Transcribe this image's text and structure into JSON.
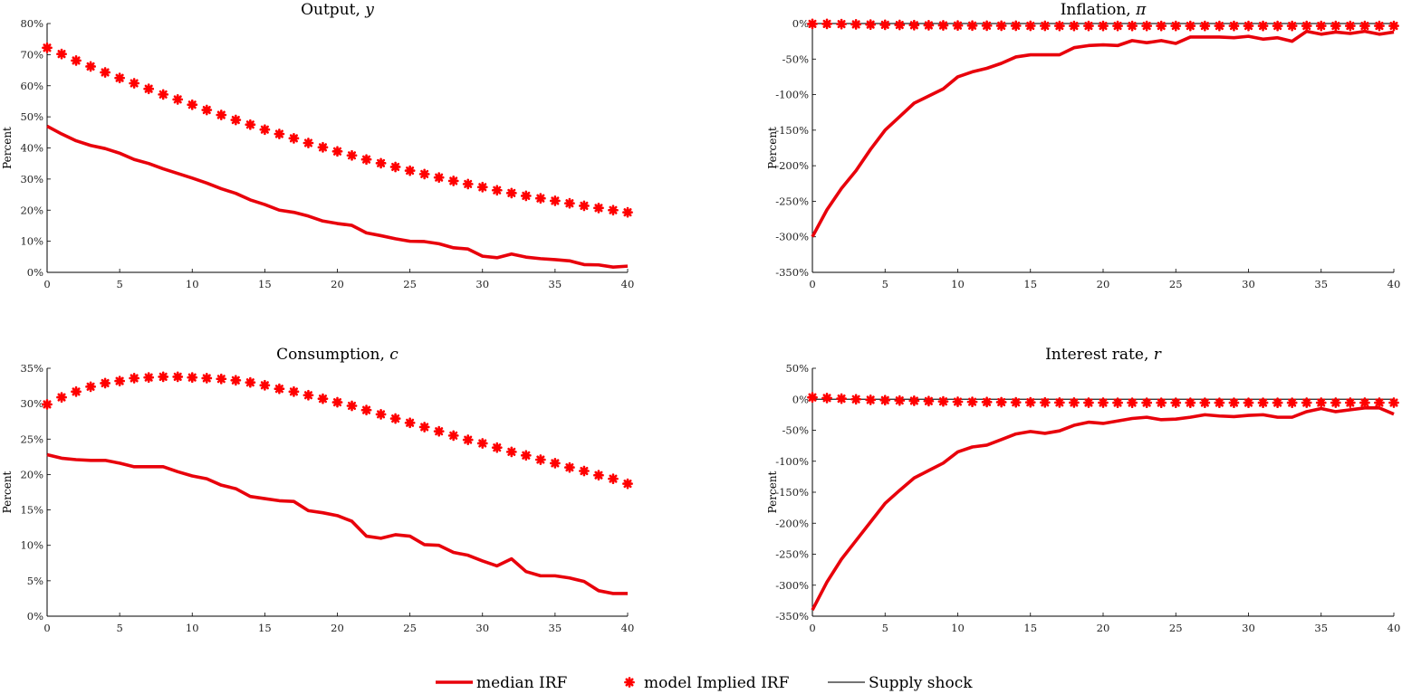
{
  "colors": {
    "median": "#e8000b",
    "model": "#ff0000",
    "supply": "#222222"
  },
  "legend": {
    "median_label": "median IRF",
    "model_label": "model Implied IRF",
    "supply_label": "Supply shock"
  },
  "chart_data": [
    {
      "type": "line",
      "title": "Output, ",
      "title_var": "y",
      "ylabel": "Percent",
      "xlim": [
        0,
        40
      ],
      "ylim": [
        0,
        80
      ],
      "xticks": [
        0,
        5,
        10,
        15,
        20,
        25,
        30,
        35,
        40
      ],
      "yticks": [
        0,
        10,
        20,
        30,
        40,
        50,
        60,
        70,
        80
      ],
      "y_tick_suffix": "%",
      "zero_line": false,
      "grid": false,
      "x": [
        0,
        1,
        2,
        3,
        4,
        5,
        6,
        7,
        8,
        9,
        10,
        11,
        12,
        13,
        14,
        15,
        16,
        17,
        18,
        19,
        20,
        21,
        22,
        23,
        24,
        25,
        26,
        27,
        28,
        29,
        30,
        31,
        32,
        33,
        34,
        35,
        36,
        37,
        38,
        39,
        40
      ],
      "series": [
        {
          "name": "median IRF",
          "style": "line",
          "values": [
            47,
            44.5,
            42.3,
            40.8,
            39.8,
            38.3,
            36.3,
            35,
            33.3,
            31.8,
            30.3,
            28.7,
            26.9,
            25.4,
            23.3,
            21.8,
            20,
            19.3,
            18.1,
            16.5,
            15.7,
            15.1,
            12.7,
            11.8,
            10.8,
            10,
            9.9,
            9.2,
            7.9,
            7.5,
            5.2,
            4.7,
            5.9,
            4.9,
            4.4,
            4.1,
            3.7,
            2.5,
            2.4,
            1.7,
            2
          ]
        },
        {
          "name": "model Implied IRF",
          "style": "markers",
          "values": [
            72.2,
            70.2,
            68.1,
            66.2,
            64.3,
            62.5,
            60.8,
            59.0,
            57.2,
            55.6,
            53.9,
            52.2,
            50.6,
            49.0,
            47.5,
            45.9,
            44.5,
            43.1,
            41.6,
            40.2,
            38.9,
            37.6,
            36.3,
            35.1,
            33.9,
            32.7,
            31.6,
            30.5,
            29.4,
            28.4,
            27.4,
            26.4,
            25.5,
            24.6,
            23.8,
            23.0,
            22.2,
            21.4,
            20.7,
            20.0,
            19.3
          ]
        }
      ]
    },
    {
      "type": "line",
      "title": "Inflation, ",
      "title_var": "π",
      "ylabel": "Percent",
      "xlim": [
        0,
        40
      ],
      "ylim": [
        -350,
        0
      ],
      "xticks": [
        0,
        5,
        10,
        15,
        20,
        25,
        30,
        35,
        40
      ],
      "yticks": [
        -350,
        -300,
        -250,
        -200,
        -150,
        -100,
        -50,
        0
      ],
      "y_tick_suffix": "%",
      "zero_line": true,
      "grid": false,
      "x": [
        0,
        1,
        2,
        3,
        4,
        5,
        6,
        7,
        8,
        9,
        10,
        11,
        12,
        13,
        14,
        15,
        16,
        17,
        18,
        19,
        20,
        21,
        22,
        23,
        24,
        25,
        26,
        27,
        28,
        29,
        30,
        31,
        32,
        33,
        34,
        35,
        36,
        37,
        38,
        39,
        40
      ],
      "series": [
        {
          "name": "median IRF",
          "style": "line",
          "values": [
            -300,
            -262,
            -232,
            -207,
            -177,
            -150,
            -131,
            -112,
            -102,
            -92,
            -75,
            -68,
            -63,
            -56,
            -47,
            -44,
            -44,
            -44,
            -34,
            -31,
            -30,
            -31,
            -24,
            -27,
            -24,
            -28,
            -19,
            -19,
            -19,
            -20,
            -18,
            -22,
            -20,
            -25,
            -11,
            -15,
            -12,
            -14,
            -11,
            -15,
            -12
          ]
        },
        {
          "name": "model Implied IRF",
          "style": "markers",
          "values": [
            -0.5,
            -0.5,
            -0.8,
            -1.2,
            -1.5,
            -1.8,
            -2,
            -2.3,
            -2.5,
            -2.6,
            -2.8,
            -2.9,
            -3,
            -3.1,
            -3.1,
            -3.2,
            -3.2,
            -3.3,
            -3.3,
            -3.3,
            -3.3,
            -3.3,
            -3.3,
            -3.3,
            -3.3,
            -3.3,
            -3.3,
            -3.3,
            -3.3,
            -3.3,
            -3.3,
            -3.3,
            -3.3,
            -3.3,
            -3.3,
            -3.3,
            -3.3,
            -3.3,
            -3.3,
            -3.3,
            -3.3
          ]
        },
        {
          "name": "Supply shock",
          "style": "thin",
          "values": [
            0,
            0,
            0,
            0,
            0,
            0,
            0,
            0,
            0,
            0,
            0,
            0,
            0,
            0,
            0,
            0,
            0,
            0,
            0,
            0,
            0,
            0,
            0,
            0,
            0,
            0,
            0,
            0,
            0,
            0,
            0,
            0,
            0,
            0,
            0,
            0,
            0,
            0,
            0,
            0,
            0
          ]
        }
      ]
    },
    {
      "type": "line",
      "title": "Consumption, ",
      "title_var": "c",
      "ylabel": "Percent",
      "xlim": [
        0,
        40
      ],
      "ylim": [
        0,
        35
      ],
      "xticks": [
        0,
        5,
        10,
        15,
        20,
        25,
        30,
        35,
        40
      ],
      "yticks": [
        0,
        5,
        10,
        15,
        20,
        25,
        30,
        35
      ],
      "y_tick_suffix": "%",
      "zero_line": false,
      "grid": false,
      "x": [
        0,
        1,
        2,
        3,
        4,
        5,
        6,
        7,
        8,
        9,
        10,
        11,
        12,
        13,
        14,
        15,
        16,
        17,
        18,
        19,
        20,
        21,
        22,
        23,
        24,
        25,
        26,
        27,
        28,
        29,
        30,
        31,
        32,
        33,
        34,
        35,
        36,
        37,
        38,
        39,
        40
      ],
      "series": [
        {
          "name": "median IRF",
          "style": "line",
          "values": [
            22.8,
            22.3,
            22.1,
            22,
            22,
            21.6,
            21.1,
            21.1,
            21.1,
            20.4,
            19.8,
            19.4,
            18.5,
            18,
            16.9,
            16.6,
            16.3,
            16.2,
            14.9,
            14.6,
            14.2,
            13.4,
            11.3,
            11,
            11.5,
            11.3,
            10.1,
            10,
            9,
            8.6,
            7.8,
            7.1,
            8.1,
            6.3,
            5.7,
            5.7,
            5.4,
            4.9,
            3.6,
            3.2,
            3.2
          ]
        },
        {
          "name": "model Implied IRF",
          "style": "markers",
          "values": [
            29.9,
            30.9,
            31.7,
            32.4,
            32.9,
            33.2,
            33.6,
            33.7,
            33.8,
            33.8,
            33.7,
            33.6,
            33.5,
            33.3,
            33.0,
            32.6,
            32.1,
            31.7,
            31.2,
            30.7,
            30.2,
            29.7,
            29.1,
            28.5,
            27.9,
            27.3,
            26.7,
            26.1,
            25.5,
            24.9,
            24.4,
            23.8,
            23.2,
            22.7,
            22.1,
            21.6,
            21.0,
            20.5,
            19.9,
            19.4,
            18.7
          ]
        }
      ]
    },
    {
      "type": "line",
      "title": "Interest rate, ",
      "title_var": "r",
      "ylabel": "Percent",
      "xlim": [
        0,
        40
      ],
      "ylim": [
        -350,
        50
      ],
      "xticks": [
        0,
        5,
        10,
        15,
        20,
        25,
        30,
        35,
        40
      ],
      "yticks": [
        -350,
        -300,
        -250,
        -200,
        -150,
        -100,
        -50,
        0,
        50
      ],
      "y_tick_suffix": "%",
      "zero_line": true,
      "grid": false,
      "x": [
        0,
        1,
        2,
        3,
        4,
        5,
        6,
        7,
        8,
        9,
        10,
        11,
        12,
        13,
        14,
        15,
        16,
        17,
        18,
        19,
        20,
        21,
        22,
        23,
        24,
        25,
        26,
        27,
        28,
        29,
        30,
        31,
        32,
        33,
        34,
        35,
        36,
        37,
        38,
        39,
        40
      ],
      "series": [
        {
          "name": "median IRF",
          "style": "line",
          "values": [
            -340,
            -295,
            -258,
            -228,
            -198,
            -168,
            -147,
            -127,
            -115,
            -103,
            -85,
            -77,
            -74,
            -65,
            -56,
            -52,
            -55,
            -51,
            -42,
            -37,
            -39,
            -35,
            -31,
            -29,
            -33,
            -32,
            -29,
            -25,
            -27,
            -28,
            -26,
            -25,
            -29,
            -29,
            -20,
            -15,
            -20,
            -17,
            -14,
            -14,
            -24
          ]
        },
        {
          "name": "model Implied IRF",
          "style": "markers",
          "values": [
            3,
            2,
            1,
            0,
            -1,
            -1.5,
            -2,
            -2.5,
            -3,
            -3.5,
            -4,
            -4.2,
            -4.5,
            -4.7,
            -5,
            -5,
            -5.2,
            -5.3,
            -5.4,
            -5.5,
            -5.5,
            -5.6,
            -5.6,
            -5.6,
            -5.6,
            -5.6,
            -5.6,
            -5.6,
            -5.6,
            -5.6,
            -5.6,
            -5.6,
            -5.6,
            -5.6,
            -5.5,
            -5.5,
            -5.5,
            -5.5,
            -5.5,
            -5.5,
            -5.5
          ]
        },
        {
          "name": "Supply shock",
          "style": "thin",
          "values": [
            0,
            0,
            0,
            0,
            0,
            0,
            0,
            0,
            0,
            0,
            0,
            0,
            0,
            0,
            0,
            0,
            0,
            0,
            0,
            0,
            0,
            0,
            0,
            0,
            0,
            0,
            0,
            0,
            0,
            0,
            0,
            0,
            0,
            0,
            0,
            0,
            0,
            0,
            0,
            0,
            0
          ]
        }
      ]
    }
  ]
}
